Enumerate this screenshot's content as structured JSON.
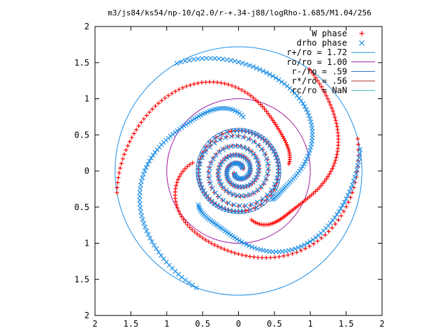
{
  "chart_data": {
    "type": "scatter",
    "title": "m3/js84/ks54/np-10/q2.0/r-+.34-j88/logRho-1.685/M1.04/256",
    "xlabel": "",
    "ylabel": "",
    "xlim": [
      -2,
      2
    ],
    "ylim": [
      -2,
      2
    ],
    "x_ticks": [
      -2,
      -1.5,
      -1,
      -0.5,
      0,
      0.5,
      1,
      1.5,
      2
    ],
    "y_ticks": [
      -2,
      -1.5,
      -1,
      -0.5,
      0,
      0.5,
      1,
      1.5,
      2
    ],
    "x_tick_labels": [
      "2",
      "1.5",
      "1",
      "0.5",
      "0",
      "0.5",
      "1",
      "1.5",
      "2"
    ],
    "y_tick_labels": [
      "2",
      "1.5",
      "1",
      "0.5",
      "0",
      "0.5",
      "1",
      "1.5",
      "2"
    ],
    "grid": false,
    "legend_position": "top-right",
    "series": [
      {
        "name": "W phase",
        "marker": "plus",
        "color": "#ff0000",
        "spiral": {
          "a": 0.09,
          "b": 0.34,
          "theta0": 3.6,
          "theta_max": 20.7,
          "arms": 2
        },
        "outer_arms": [
          {
            "phi_start": 170,
            "phi_end": 15,
            "r_start": 0.65,
            "r_end": 1.72
          },
          {
            "phi_start": 285,
            "phi_end": 55,
            "r_start": 0.6,
            "r_end": 1.72
          },
          {
            "phi_start": 8,
            "phi_end": 190,
            "r_start": 0.6,
            "r_end": 1.72
          }
        ]
      },
      {
        "name": "drho phase",
        "marker": "cross",
        "color": "#1e8fe6",
        "spiral": {
          "a": 0.09,
          "b": 0.34,
          "theta0": 3.8,
          "theta_max": 20.5,
          "arms": 2
        },
        "outer_arms": [
          {
            "phi_start": 85,
            "phi_end": 250,
            "r_start": 0.65,
            "r_end": 1.72
          },
          {
            "phi_start": 220,
            "phi_end": 10,
            "r_start": 0.62,
            "r_end": 1.72
          },
          {
            "phi_start": 320,
            "phi_end": 120,
            "r_start": 0.6,
            "r_end": 1.72
          }
        ]
      }
    ],
    "circles": [
      {
        "name": "r+/ro = 1.72",
        "r": 1.72,
        "color": "#1e8fe6"
      },
      {
        "name": "ro/ro = 1.00",
        "r": 1.0,
        "color": "#a020a0"
      },
      {
        "name": "r-/ro = .59",
        "r": 0.59,
        "color": "#2b6bc4"
      },
      {
        "name": "r*/ro = .56",
        "r": 0.56,
        "color": "#b03030"
      },
      {
        "name": "rc/ro = NaN",
        "r": null,
        "color": "#33c1c1"
      }
    ]
  }
}
